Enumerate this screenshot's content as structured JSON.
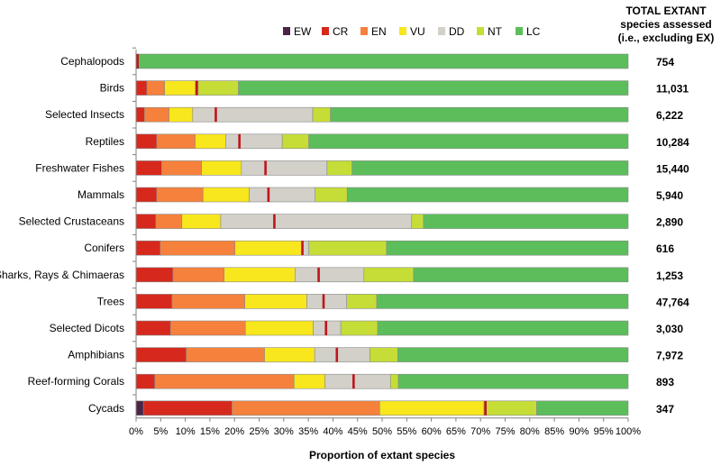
{
  "chart_data": {
    "type": "bar",
    "orientation": "horizontal",
    "stacked": true,
    "normalized": true,
    "title": "",
    "xlabel": "Proportion of extant species",
    "ylabel": "",
    "xlim": [
      0,
      100
    ],
    "x_ticks": [
      "0%",
      "5%",
      "10%",
      "15%",
      "20%",
      "25%",
      "30%",
      "35%",
      "40%",
      "45%",
      "50%",
      "55%",
      "60%",
      "65%",
      "70%",
      "75%",
      "80%",
      "85%",
      "90%",
      "95%",
      "100%"
    ],
    "grid": false,
    "legend_position": "top",
    "legend": [
      "EW",
      "CR",
      "EN",
      "VU",
      "DD",
      "NT",
      "LC"
    ],
    "colors": {
      "EW": "#4B2446",
      "CR": "#D7281E",
      "EN": "#F5813C",
      "VU": "#F8E71C",
      "DD": "#D2D0C8",
      "NT": "#C5DD36",
      "LC": "#5BBE5B",
      "best_estimate_marker": "#C0141C"
    },
    "totals_title": [
      "TOTAL EXTANT",
      "species assessed",
      "(i.e., excluding EX)"
    ],
    "categories": [
      "Cephalopods",
      "Birds",
      "Selected Insects",
      "Reptiles",
      "Freshwater Fishes",
      "Mammals",
      "Selected Crustaceans",
      "Conifers",
      "Sharks, Rays & Chimaeras",
      "Trees",
      "Selected Dicots",
      "Amphibians",
      "Reef-forming Corals",
      "Cycads"
    ],
    "totals": [
      "754",
      "11,031",
      "6,222",
      "10,284",
      "15,440",
      "5,940",
      "2,890",
      "616",
      "1,253",
      "47,764",
      "3,030",
      "7,972",
      "893",
      "347"
    ],
    "series": [
      {
        "name": "EW",
        "values": [
          0,
          0,
          0,
          0,
          0,
          0,
          0,
          0,
          0,
          0,
          0,
          0,
          0,
          1.5
        ]
      },
      {
        "name": "CR",
        "values": [
          0.3,
          2.2,
          1.7,
          4.2,
          5.2,
          4.2,
          4.0,
          4.9,
          7.5,
          7.3,
          7.0,
          10.2,
          3.8,
          18.0
        ]
      },
      {
        "name": "EN",
        "values": [
          0,
          3.6,
          5.0,
          7.8,
          8.1,
          9.4,
          5.3,
          15.2,
          10.4,
          14.8,
          15.2,
          15.9,
          28.3,
          30.0
        ]
      },
      {
        "name": "VU",
        "values": [
          0,
          6.3,
          4.8,
          6.2,
          8.1,
          9.4,
          7.9,
          13.8,
          14.4,
          12.6,
          13.8,
          10.2,
          6.3,
          21.2
        ]
      },
      {
        "name": "DD",
        "values": [
          0,
          0.5,
          24.4,
          11.5,
          17.4,
          13.4,
          38.8,
          1.2,
          14.0,
          8.1,
          5.6,
          11.2,
          13.3,
          0
        ]
      },
      {
        "name": "NT",
        "values": [
          0,
          8.2,
          3.6,
          5.4,
          5.1,
          6.5,
          2.4,
          15.8,
          10.1,
          6.1,
          7.5,
          5.7,
          1.6,
          10.7
        ]
      },
      {
        "name": "LC",
        "values": [
          99.7,
          79.2,
          60.5,
          64.9,
          56.1,
          57.1,
          41.6,
          49.1,
          43.6,
          51.1,
          50.9,
          46.8,
          46.7,
          18.6
        ]
      }
    ],
    "best_estimate_percent": [
      0.3,
      12.3,
      16.2,
      21.0,
      26.3,
      26.9,
      28.1,
      33.8,
      37.1,
      38.1,
      38.6,
      40.8,
      44.2,
      71.0
    ]
  }
}
